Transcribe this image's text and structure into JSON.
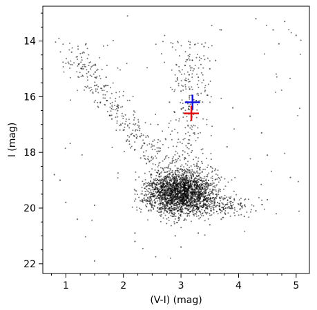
{
  "chart_data": {
    "type": "scatter",
    "title": "",
    "xlabel": "(V-I) (mag)",
    "ylabel": "I (mag)",
    "xlim": [
      0.6,
      5.23
    ],
    "ylim": [
      22.35,
      12.75
    ],
    "y_inverted": true,
    "grid": false,
    "x_ticks": [
      1,
      2,
      3,
      4,
      5
    ],
    "x_tick_labels": [
      "1",
      "2",
      "3",
      "4",
      "5"
    ],
    "y_ticks": [
      14,
      16,
      18,
      20,
      22
    ],
    "y_tick_labels": [
      "14",
      "16",
      "18",
      "20",
      "22"
    ],
    "series": [
      {
        "marker": "dot",
        "color": "#000000",
        "points": [
          [
            2.9,
            19.3
          ],
          [
            2.7,
            19.0
          ],
          [
            3.1,
            19.5
          ],
          [
            2.8,
            18.8
          ],
          [
            3.2,
            19.9
          ],
          [
            2.6,
            19.4
          ],
          [
            3.0,
            18.6
          ],
          [
            3.4,
            19.7
          ],
          [
            2.5,
            19.1
          ],
          [
            3.3,
            19.2
          ],
          [
            2.4,
            18.4
          ],
          [
            2.2,
            17.9
          ],
          [
            2.0,
            17.2
          ],
          [
            1.8,
            16.8
          ],
          [
            1.6,
            16.2
          ],
          [
            1.5,
            15.6
          ],
          [
            1.3,
            15.0
          ],
          [
            1.1,
            14.4
          ],
          [
            1.35,
            14.1
          ],
          [
            1.7,
            15.3
          ],
          [
            1.9,
            16.5
          ],
          [
            2.1,
            17.6
          ],
          [
            2.3,
            18.2
          ],
          [
            2.6,
            17.0
          ],
          [
            2.8,
            16.2
          ],
          [
            3.0,
            15.8
          ],
          [
            3.3,
            15.3
          ],
          [
            3.5,
            15.0
          ],
          [
            3.6,
            14.7
          ],
          [
            3.7,
            13.6
          ],
          [
            3.9,
            16.4
          ],
          [
            3.8,
            17.8
          ],
          [
            3.6,
            18.6
          ],
          [
            3.9,
            19.8
          ],
          [
            4.1,
            20.3
          ],
          [
            4.3,
            20.1
          ],
          [
            4.5,
            19.7
          ],
          [
            3.7,
            20.4
          ],
          [
            3.5,
            20.6
          ],
          [
            2.2,
            20.9
          ],
          [
            1.5,
            19.9
          ],
          [
            1.0,
            19.8
          ],
          [
            0.9,
            19.0
          ],
          [
            0.8,
            18.8
          ],
          [
            1.2,
            20.4
          ],
          [
            4.3,
            13.2
          ],
          [
            4.6,
            13.6
          ],
          [
            4.8,
            13.3
          ],
          [
            5.0,
            13.8
          ],
          [
            4.7,
            14.1
          ],
          [
            1.5,
            21.9
          ],
          [
            2.2,
            21.2
          ],
          [
            2.9,
            21.0
          ],
          [
            3.3,
            20.9
          ],
          [
            3.0,
            21.4
          ],
          [
            4.5,
            18.1
          ],
          [
            4.9,
            18.9
          ],
          [
            4.2,
            16.7
          ],
          [
            4.4,
            17.3
          ],
          [
            3.4,
            14.2
          ]
        ]
      },
      {
        "name": "",
        "marker": "plus",
        "color": "#1010e0",
        "points": [
          [
            3.2,
            16.2
          ]
        ]
      },
      {
        "name": "",
        "marker": "plus",
        "color": "#e01010",
        "points": [
          [
            3.18,
            16.6
          ]
        ]
      }
    ]
  }
}
